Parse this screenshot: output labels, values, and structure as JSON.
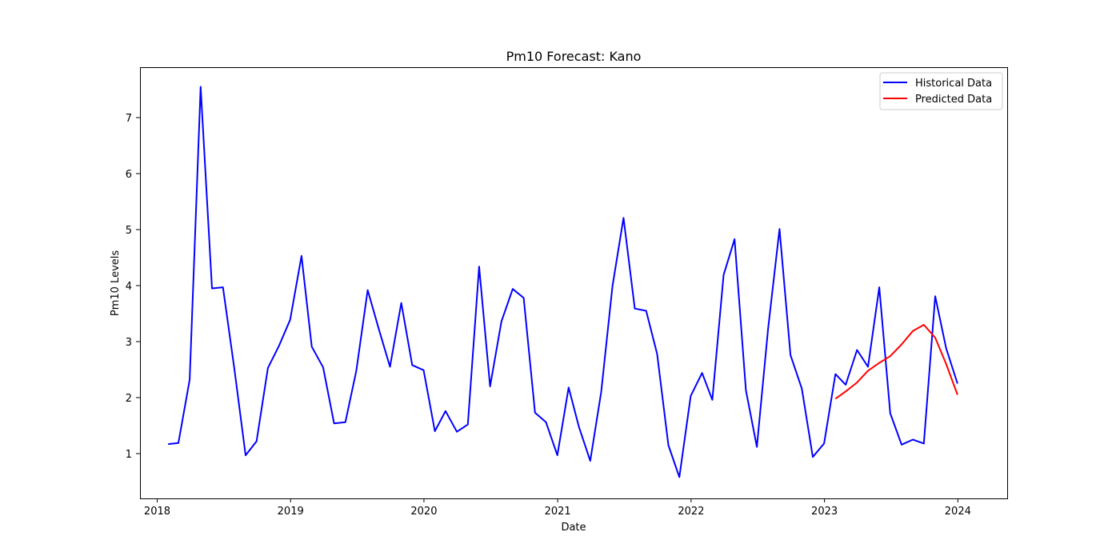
{
  "chart_data": {
    "type": "line",
    "title": "Pm10 Forecast: Kano",
    "xlabel": "Date",
    "ylabel": "Pm10 Levels",
    "x_tick_labels": [
      "2018",
      "2019",
      "2020",
      "2021",
      "2022",
      "2023",
      "2024"
    ],
    "y_tick_labels": [
      "1",
      "2",
      "3",
      "4",
      "5",
      "6",
      "7"
    ],
    "xlim": [
      "2017-11-15",
      "2024-05-15"
    ],
    "ylim": [
      0.2,
      7.9
    ],
    "grid": false,
    "legend_position": "upper right",
    "series": [
      {
        "name": "Historical Data",
        "color": "#0000ff",
        "points": [
          [
            "2018-01-31",
            1.17
          ],
          [
            "2018-02-28",
            1.19
          ],
          [
            "2018-03-31",
            2.32
          ],
          [
            "2018-04-30",
            7.55
          ],
          [
            "2018-05-31",
            3.95
          ],
          [
            "2018-06-30",
            3.97
          ],
          [
            "2018-07-31",
            2.52
          ],
          [
            "2018-08-31",
            0.97
          ],
          [
            "2018-09-30",
            1.22
          ],
          [
            "2018-10-31",
            2.53
          ],
          [
            "2018-11-30",
            2.92
          ],
          [
            "2018-12-31",
            3.39
          ],
          [
            "2019-01-31",
            4.53
          ],
          [
            "2019-02-28",
            2.91
          ],
          [
            "2019-03-31",
            2.54
          ],
          [
            "2019-04-30",
            1.54
          ],
          [
            "2019-05-31",
            1.56
          ],
          [
            "2019-06-30",
            2.48
          ],
          [
            "2019-07-31",
            3.92
          ],
          [
            "2019-08-31",
            3.21
          ],
          [
            "2019-09-30",
            2.55
          ],
          [
            "2019-10-31",
            3.69
          ],
          [
            "2019-11-30",
            2.58
          ],
          [
            "2019-12-31",
            2.49
          ],
          [
            "2020-01-31",
            1.4
          ],
          [
            "2020-02-29",
            1.76
          ],
          [
            "2020-03-31",
            1.39
          ],
          [
            "2020-04-30",
            1.52
          ],
          [
            "2020-05-31",
            4.34
          ],
          [
            "2020-06-30",
            2.2
          ],
          [
            "2020-07-31",
            3.36
          ],
          [
            "2020-08-31",
            3.94
          ],
          [
            "2020-09-30",
            3.78
          ],
          [
            "2020-10-31",
            1.73
          ],
          [
            "2020-11-30",
            1.56
          ],
          [
            "2020-12-31",
            0.97
          ],
          [
            "2021-01-31",
            2.18
          ],
          [
            "2021-02-28",
            1.48
          ],
          [
            "2021-03-31",
            0.87
          ],
          [
            "2021-04-30",
            2.1
          ],
          [
            "2021-05-31",
            3.99
          ],
          [
            "2021-06-30",
            5.21
          ],
          [
            "2021-07-31",
            3.59
          ],
          [
            "2021-08-31",
            3.55
          ],
          [
            "2021-09-30",
            2.78
          ],
          [
            "2021-10-31",
            1.15
          ],
          [
            "2021-11-30",
            0.58
          ],
          [
            "2021-12-31",
            2.03
          ],
          [
            "2022-01-31",
            2.44
          ],
          [
            "2022-02-28",
            1.96
          ],
          [
            "2022-03-31",
            4.19
          ],
          [
            "2022-04-30",
            4.83
          ],
          [
            "2022-05-31",
            2.13
          ],
          [
            "2022-06-30",
            1.12
          ],
          [
            "2022-07-31",
            3.24
          ],
          [
            "2022-08-31",
            5.01
          ],
          [
            "2022-09-30",
            2.76
          ],
          [
            "2022-10-31",
            2.16
          ],
          [
            "2022-11-30",
            0.94
          ],
          [
            "2022-12-31",
            1.18
          ],
          [
            "2023-01-31",
            2.42
          ],
          [
            "2023-02-28",
            2.23
          ],
          [
            "2023-03-31",
            2.85
          ],
          [
            "2023-04-30",
            2.55
          ],
          [
            "2023-05-31",
            3.97
          ],
          [
            "2023-06-30",
            1.72
          ],
          [
            "2023-07-31",
            1.16
          ],
          [
            "2023-08-31",
            1.25
          ],
          [
            "2023-09-30",
            1.18
          ],
          [
            "2023-10-31",
            3.81
          ],
          [
            "2023-11-30",
            2.88
          ],
          [
            "2023-12-31",
            2.25
          ]
        ]
      },
      {
        "name": "Predicted Data",
        "color": "#ff0000",
        "points": [
          [
            "2023-01-31",
            1.98
          ],
          [
            "2023-02-28",
            2.11
          ],
          [
            "2023-03-31",
            2.27
          ],
          [
            "2023-04-30",
            2.48
          ],
          [
            "2023-05-31",
            2.62
          ],
          [
            "2023-06-30",
            2.74
          ],
          [
            "2023-07-31",
            2.95
          ],
          [
            "2023-08-31",
            3.19
          ],
          [
            "2023-09-30",
            3.3
          ],
          [
            "2023-10-31",
            3.07
          ],
          [
            "2023-11-30",
            2.6
          ],
          [
            "2023-12-31",
            2.05
          ]
        ]
      }
    ]
  }
}
